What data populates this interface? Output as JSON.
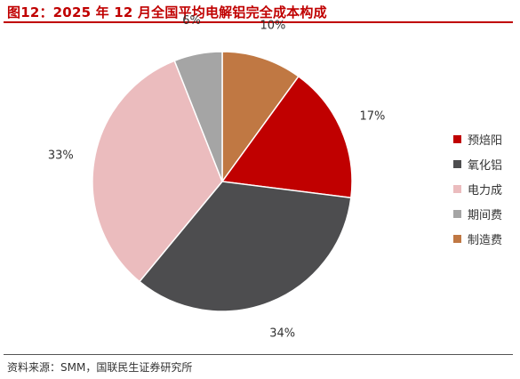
{
  "header": {
    "title": "图12：2025 年 12 月全国平均电解铝完全成本构成"
  },
  "footer": {
    "source": "资料来源：SMM，国联民生证券研究所"
  },
  "chart_data": {
    "type": "pie",
    "slices": [
      {
        "name": "预焙阳",
        "value": 17,
        "label": "17%",
        "color": "#c00000"
      },
      {
        "name": "氧化铝",
        "value": 34,
        "label": "34%",
        "color": "#4d4d4f"
      },
      {
        "name": "电力成",
        "value": 33,
        "label": "33%",
        "color": "#ebbcbe"
      },
      {
        "name": "期间费",
        "value": 6,
        "label": "6%",
        "color": "#a5a5a5"
      },
      {
        "name": "制造费",
        "value": 10,
        "label": "10%",
        "color": "#c07843"
      }
    ],
    "start_position": "12 o'clock",
    "direction": "clockwise",
    "order_from_start": [
      "制造费",
      "预焙阳",
      "氧化铝",
      "电力成",
      "期间费"
    ],
    "legend_position": "right"
  }
}
